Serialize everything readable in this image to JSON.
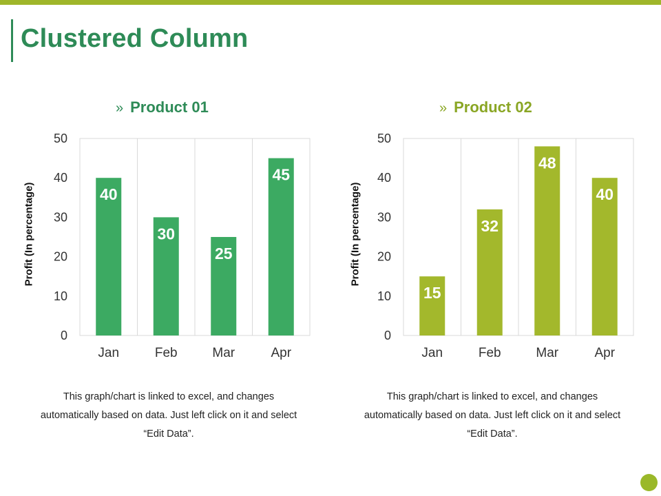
{
  "page": {
    "title": "Clustered Column",
    "caption": "This graph/chart is linked to excel, and changes automatically based on data. Just left click on it and select “Edit Data”.",
    "chevron": "»"
  },
  "colors": {
    "accent_bar": "#9fb62a",
    "title_green": "#2e8b57",
    "series1": "#3caa62",
    "series2": "#a3b82c",
    "heading2": "#8aa624",
    "grid": "#d9d9d9",
    "corner_dot": "#9ab829"
  },
  "chart_data": [
    {
      "type": "bar",
      "title": "Product 01",
      "categories": [
        "Jan",
        "Feb",
        "Mar",
        "Apr"
      ],
      "values": [
        40,
        30,
        25,
        45
      ],
      "xlabel": "",
      "ylabel": "Profit  (In percentage)",
      "ylim": [
        0,
        50
      ],
      "yticks": [
        0,
        10,
        20,
        30,
        40,
        50
      ],
      "data_labels": true,
      "grid": true
    },
    {
      "type": "bar",
      "title": "Product 02",
      "categories": [
        "Jan",
        "Feb",
        "Mar",
        "Apr"
      ],
      "values": [
        15,
        32,
        48,
        40
      ],
      "xlabel": "",
      "ylabel": "Profit  (In percentage)",
      "ylim": [
        0,
        50
      ],
      "yticks": [
        0,
        10,
        20,
        30,
        40,
        50
      ],
      "data_labels": true,
      "grid": true
    }
  ]
}
